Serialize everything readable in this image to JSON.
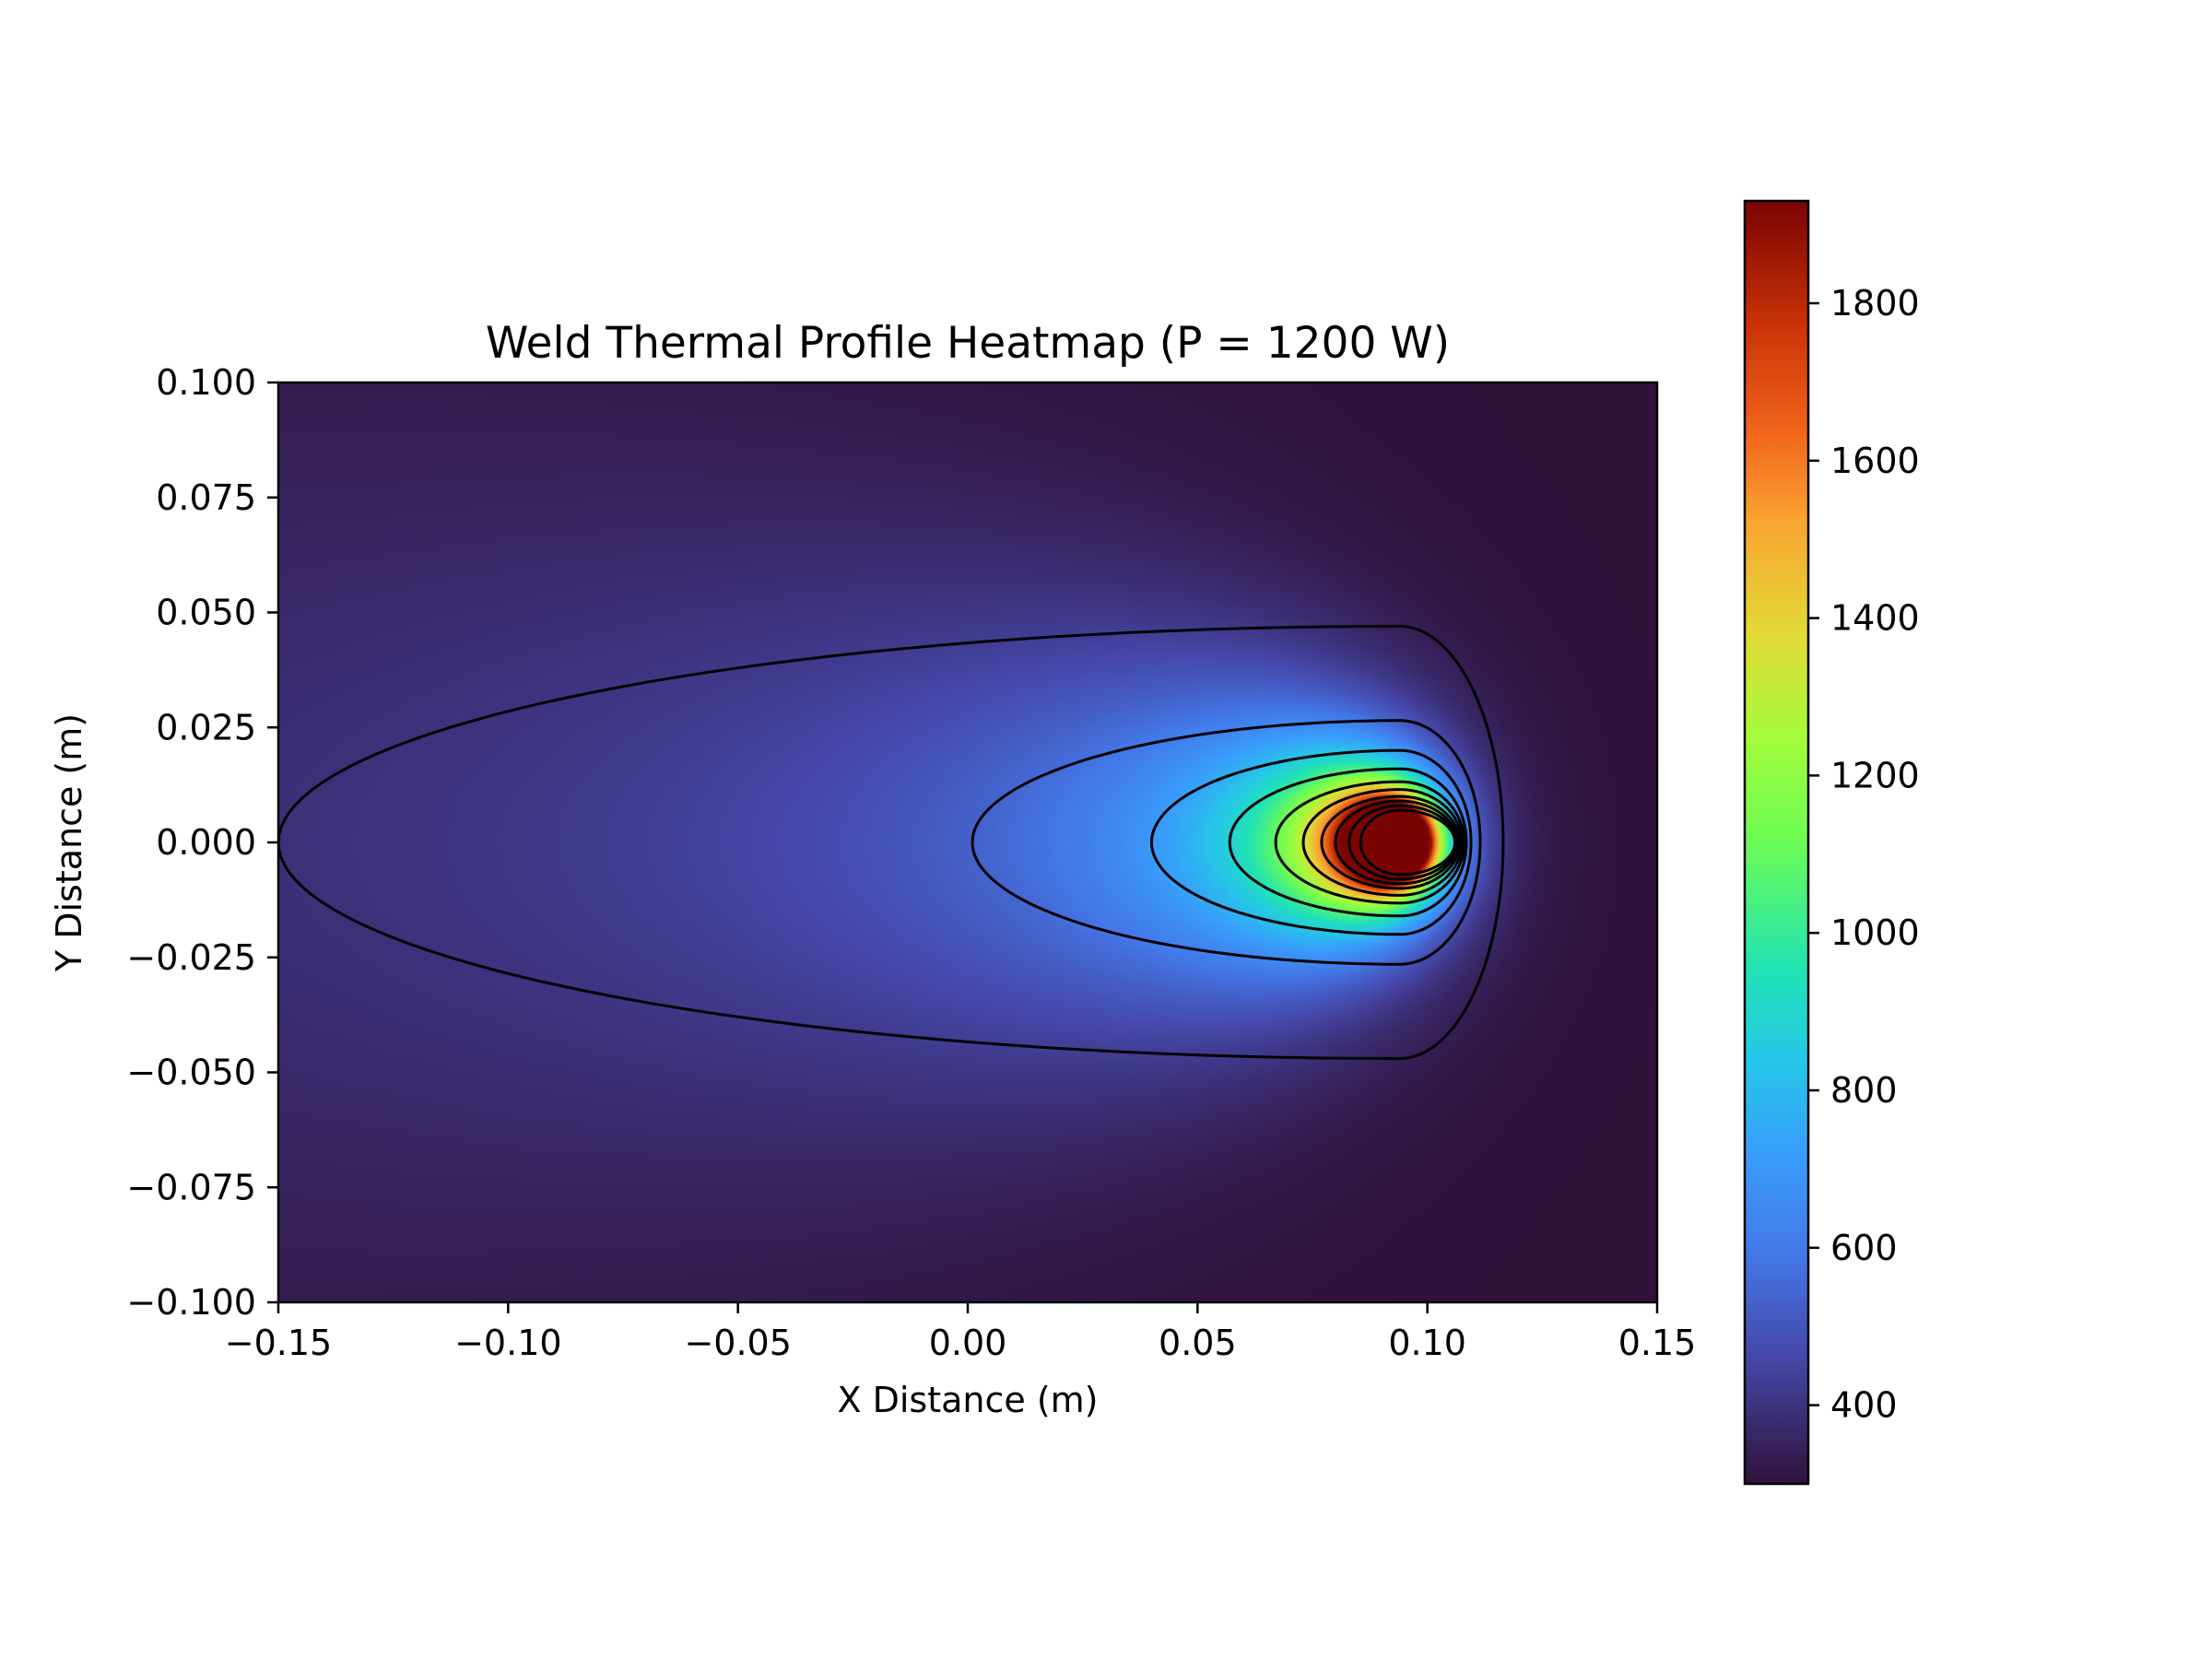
{
  "chart_data": {
    "type": "heatmap",
    "title": "Weld Thermal Profile Heatmap (P = 1200 W)",
    "xlabel": "X Distance (m)",
    "ylabel": "Y Distance (m)",
    "xlim": [
      -0.15,
      0.15
    ],
    "ylim": [
      -0.1,
      0.1
    ],
    "x_ticks": [
      "−0.15",
      "−0.10",
      "−0.05",
      "0.00",
      "0.05",
      "0.10",
      "0.15"
    ],
    "y_ticks": [
      "−0.100",
      "−0.075",
      "−0.050",
      "−0.025",
      "0.000",
      "0.025",
      "0.050",
      "0.075",
      "0.100"
    ],
    "colormap": "turbo",
    "colorbar": {
      "range": [
        300,
        1930
      ],
      "ticks": [
        400,
        600,
        800,
        1000,
        1200,
        1400,
        1600,
        1800
      ],
      "tick_labels": [
        "400",
        "600",
        "800",
        "1000",
        "1200",
        "1400",
        "1600",
        "1800"
      ]
    },
    "heat_source": {
      "x": 0.094,
      "y": 0.0,
      "ambient": 300,
      "peak_clip": 1930
    },
    "contours": [
      {
        "xmin": -0.15,
        "xmax": 0.1165,
        "y_halfwidth": 0.047
      },
      {
        "xmin": 0.001,
        "xmax": 0.1115,
        "y_halfwidth": 0.0265
      },
      {
        "xmin": 0.04,
        "xmax": 0.1095,
        "y_halfwidth": 0.02
      },
      {
        "xmin": 0.057,
        "xmax": 0.1085,
        "y_halfwidth": 0.016
      },
      {
        "xmin": 0.067,
        "xmax": 0.108,
        "y_halfwidth": 0.0132
      },
      {
        "xmin": 0.073,
        "xmax": 0.1075,
        "y_halfwidth": 0.0115
      },
      {
        "xmin": 0.077,
        "xmax": 0.107,
        "y_halfwidth": 0.01
      },
      {
        "xmin": 0.08,
        "xmax": 0.1065,
        "y_halfwidth": 0.009
      },
      {
        "xmin": 0.083,
        "xmax": 0.1062,
        "y_halfwidth": 0.008
      },
      {
        "xmin": 0.0855,
        "xmax": 0.106,
        "y_halfwidth": 0.007
      }
    ],
    "grid": false,
    "legend": "none"
  }
}
